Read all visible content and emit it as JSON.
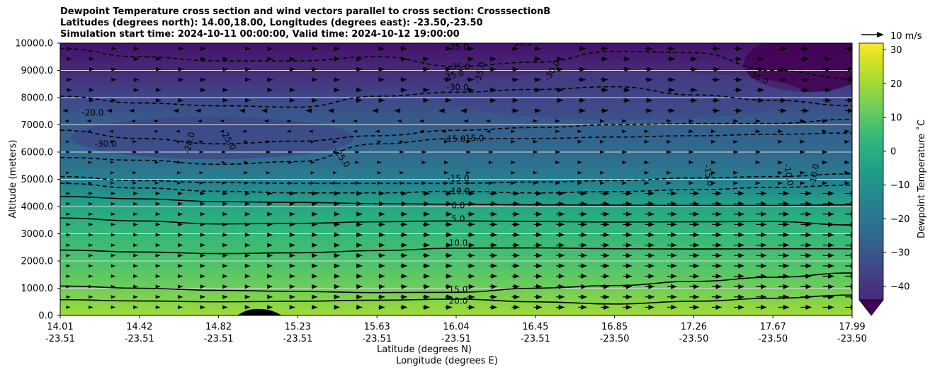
{
  "title": {
    "line1": "Dewpoint Temperature cross section and wind vectors parallel to cross section: CrosssectionB",
    "line2": "Latitudes (degrees north): 14.00,18.00, Longitudes (degrees east): -23.50,-23.50",
    "line3": "Simulation start time: 2024-10-11 00:00:00, Valid time: 2024-10-12 19:00:00"
  },
  "chart_data": {
    "type": "contour",
    "xlabel_lat": "Latitude (degrees N)",
    "xlabel_lon": "Longitude (degrees E)",
    "ylabel": "Altitude (meters)",
    "ylim": [
      0,
      10000
    ],
    "y_ticks": [
      "0.0",
      "1000.0",
      "2000.0",
      "3000.0",
      "4000.0",
      "5000.0",
      "6000.0",
      "7000.0",
      "8000.0",
      "9000.0",
      "10000.0"
    ],
    "x_ticks": [
      {
        "lat": "14.01",
        "lon": "-23.51"
      },
      {
        "lat": "14.42",
        "lon": "-23.51"
      },
      {
        "lat": "14.82",
        "lon": "-23.51"
      },
      {
        "lat": "15.23",
        "lon": "-23.51"
      },
      {
        "lat": "15.63",
        "lon": "-23.51"
      },
      {
        "lat": "16.04",
        "lon": "-23.51"
      },
      {
        "lat": "16.45",
        "lon": "-23.51"
      },
      {
        "lat": "16.85",
        "lon": "-23.50"
      },
      {
        "lat": "17.26",
        "lon": "-23.50"
      },
      {
        "lat": "17.67",
        "lon": "-23.50"
      },
      {
        "lat": "17.99",
        "lon": "-23.50"
      }
    ],
    "colorbar": {
      "label": "Dewpoint Temperature ˚C",
      "ticks": [
        "30",
        "20",
        "10",
        "0",
        "−10",
        "−20",
        "−30",
        "−40"
      ],
      "range": [
        -44,
        32
      ]
    },
    "wind_key": {
      "label": "10 m/s"
    },
    "contour_labels": [
      "-35.0",
      "-35.0",
      "-35.0",
      "-35.0",
      "-35.0",
      "-30.0",
      "-30.0",
      "-35.0",
      "-20.0",
      "-30.0",
      "-20.0",
      "-25.0",
      "-25.0",
      "-15.0",
      "-15.0",
      "-15.0",
      "-15.0",
      "-10.0",
      "-10.0",
      "-10.0",
      "0.0",
      "5.0",
      "10.0",
      "15.0",
      "20.0"
    ],
    "levels_solid": [
      {
        "level": 0,
        "heights": [
          4370,
          4280,
          4180,
          4150,
          4110,
          4080,
          4060,
          4050,
          4040,
          4040,
          4060
        ]
      },
      {
        "level": 5,
        "heights": [
          3580,
          3470,
          3360,
          3380,
          3440,
          3470,
          3450,
          3430,
          3440,
          3450,
          3320
        ]
      },
      {
        "level": 10,
        "heights": [
          2400,
          2330,
          2270,
          2300,
          2380,
          2470,
          2480,
          2450,
          2440,
          2450,
          2450
        ]
      },
      {
        "level": 15,
        "heights": [
          1080,
          1000,
          920,
          880,
          840,
          850,
          1000,
          1100,
          1250,
          1400,
          1560
        ]
      },
      {
        "level": 20,
        "heights": [
          580,
          530,
          500,
          520,
          560,
          600,
          500,
          420,
          520,
          630,
          750
        ]
      }
    ],
    "levels_dashed": [
      {
        "level": -10,
        "heights": [
          4850,
          4680,
          4560,
          4500,
          4500,
          4560,
          4500,
          4550,
          4620,
          4700,
          4780
        ]
      },
      {
        "level": -15,
        "heights": [
          5100,
          4950,
          4880,
          4850,
          4850,
          4850,
          4900,
          4950,
          5050,
          5100,
          5200
        ]
      },
      {
        "level": -20,
        "heights": [
          5800,
          5700,
          5550,
          5650,
          6300,
          6500,
          6500,
          6550,
          6600,
          6650,
          6700
        ]
      },
      {
        "level": -25,
        "heights": [
          6800,
          6500,
          6300,
          6400,
          6600,
          6800,
          6900,
          7000,
          7050,
          7050,
          7200
        ]
      },
      {
        "level": -30,
        "heights": [
          8050,
          7800,
          7700,
          7650,
          8050,
          8200,
          8300,
          8400,
          8100,
          7900,
          7700
        ]
      },
      {
        "level": -35,
        "heights": [
          9800,
          9500,
          9350,
          9350,
          9500,
          9150,
          9300,
          9700,
          9650,
          9000,
          8700
        ]
      }
    ]
  }
}
